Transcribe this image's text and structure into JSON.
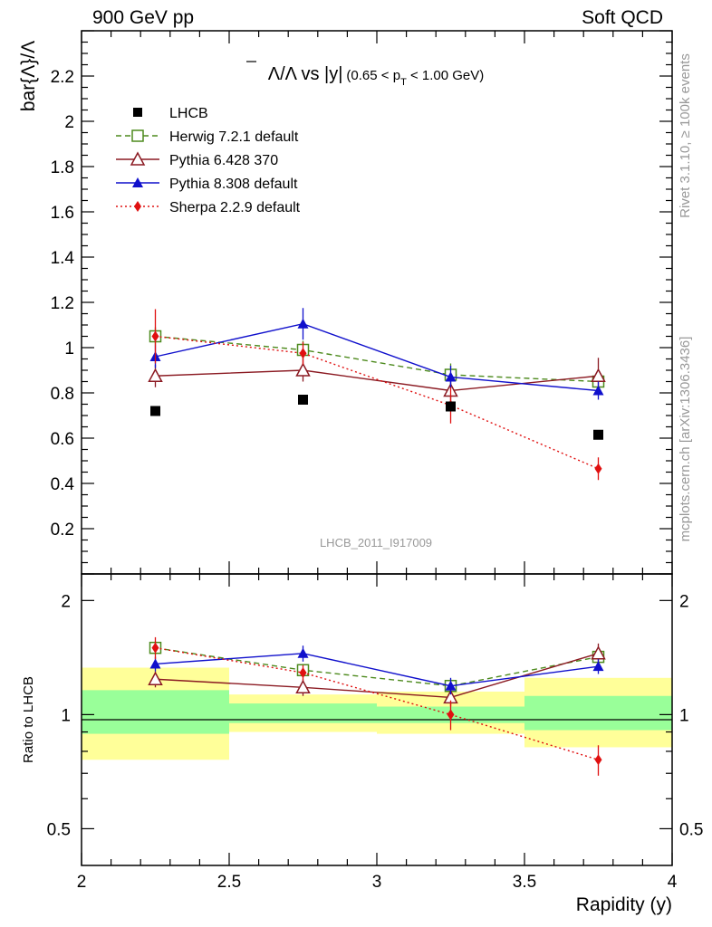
{
  "header": {
    "left": "900 GeV pp",
    "right": "Soft QCD"
  },
  "side_labels": {
    "top": "Rivet 3.1.10, ≥ 100k events",
    "bottom": "mcplots.cern.ch [arXiv:1306.3436]"
  },
  "chart_data": {
    "type": "scatter",
    "title": "Λ̅/Λ vs |y| (0.65 < p_T < 1.00 GeV)",
    "title_main": "Λ/Λ vs |y|",
    "title_cut_open": "(0.65 < p",
    "title_cut_sub": "T",
    "title_cut_close": " < 1.00 GeV)",
    "watermark": "LHCB_2011_I917009",
    "xlabel": "Rapidity (y)",
    "ylabel": "bar{Λ}/Λ",
    "ratio_ylabel": "Ratio to LHCB",
    "xlim": [
      2,
      4
    ],
    "ylim": [
      0,
      2.4
    ],
    "ratio_ylim": [
      0.4,
      2.35
    ],
    "ratio_log": true,
    "grid": false,
    "legend_position": "top-left",
    "xticks": [
      "2",
      "2.5",
      "3",
      "3.5",
      "4"
    ],
    "yticks": [
      "0.2",
      "0.4",
      "0.6",
      "0.8",
      "1",
      "1.2",
      "1.4",
      "1.6",
      "1.8",
      "2",
      "2.2"
    ],
    "ratio_yticks": [
      "0.5",
      "1",
      "2"
    ],
    "bins": [
      [
        2.0,
        2.5
      ],
      [
        2.5,
        3.0
      ],
      [
        3.0,
        3.5
      ],
      [
        3.5,
        4.0
      ]
    ],
    "x": [
      2.25,
      2.75,
      3.25,
      3.75
    ],
    "data": {
      "name": "LHCB",
      "color": "#000000",
      "values": [
        0.72,
        0.77,
        0.74,
        0.615
      ],
      "ratio_band_inner": [
        [
          0.89,
          1.16
        ],
        [
          0.95,
          1.07
        ],
        [
          0.95,
          1.05
        ],
        [
          0.91,
          1.12
        ]
      ],
      "ratio_band_outer": [
        [
          0.76,
          1.33
        ],
        [
          0.9,
          1.13
        ],
        [
          0.89,
          1.15
        ],
        [
          0.82,
          1.25
        ]
      ]
    },
    "series": [
      {
        "name": "Herwig 7.2.1 default",
        "color": "#4d8a1d",
        "style": "dashed",
        "marker": "open-square",
        "values": [
          1.05,
          0.99,
          0.88,
          0.85
        ],
        "errors": [
          0.04,
          0.04,
          0.05,
          0.05
        ],
        "ratio": [
          1.5,
          1.31,
          1.19,
          1.42
        ],
        "ratio_errors": [
          0.06,
          0.05,
          0.05,
          0.06
        ]
      },
      {
        "name": "Pythia 6.428 370",
        "color": "#8b1a22",
        "style": "solid",
        "marker": "open-triangle",
        "values": [
          0.875,
          0.9,
          0.81,
          0.875
        ],
        "errors": [
          0.05,
          0.05,
          0.05,
          0.08
        ],
        "ratio": [
          1.24,
          1.18,
          1.11,
          1.45
        ],
        "ratio_errors": [
          0.06,
          0.06,
          0.06,
          0.09
        ]
      },
      {
        "name": "Pythia 8.308 default",
        "color": "#1010cc",
        "style": "solid",
        "marker": "filled-triangle",
        "values": [
          0.96,
          1.105,
          0.87,
          0.81
        ],
        "errors": [
          0.05,
          0.07,
          0.05,
          0.04
        ],
        "ratio": [
          1.36,
          1.45,
          1.19,
          1.34
        ],
        "ratio_errors": [
          0.06,
          0.07,
          0.06,
          0.06
        ]
      },
      {
        "name": "Sherpa 2.2.9 default",
        "color": "#e01010",
        "style": "dotted",
        "marker": "filled-diamond",
        "values": [
          1.05,
          0.975,
          0.745,
          0.465
        ],
        "errors": [
          0.12,
          0.05,
          0.08,
          0.05
        ],
        "ratio": [
          1.5,
          1.29,
          1.0,
          0.76
        ],
        "ratio_errors": [
          0.1,
          0.06,
          0.09,
          0.07
        ]
      }
    ]
  }
}
